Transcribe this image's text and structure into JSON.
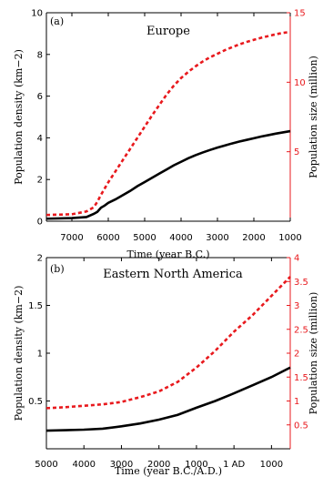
{
  "chart_data": [
    {
      "type": "line",
      "panel_label": "(a)",
      "title": "Europe",
      "xlabel": "Time (year B.C.)",
      "ylabel_left": "Population density (km−2)",
      "ylabel_right": "Population size (million)",
      "xlim": [
        7700,
        1000
      ],
      "xticks": [
        7000,
        6000,
        5000,
        4000,
        3000,
        2000,
        1000
      ],
      "xtick_labels": [
        "7000",
        "6000",
        "5000",
        "4000",
        "3000",
        "2000",
        "1000"
      ],
      "ylim_left": [
        0,
        10
      ],
      "yticks_left": [
        0,
        2,
        4,
        6,
        8,
        10
      ],
      "ylim_right": [
        0,
        15
      ],
      "yticks_right": [
        5,
        10,
        15
      ],
      "grid": false,
      "colors": {
        "density": "#000000",
        "size": "#e8191d",
        "right_axis": "#e8191d"
      },
      "series": [
        {
          "axis": "left",
          "style": "solid",
          "x": [
            7700,
            7000,
            6600,
            6400,
            6300,
            6200,
            6100,
            6000,
            5800,
            5600,
            5400,
            5200,
            5000,
            4800,
            4600,
            4400,
            4200,
            4000,
            3800,
            3600,
            3400,
            3200,
            3000,
            2800,
            2600,
            2400,
            2200,
            2000,
            1800,
            1600,
            1400,
            1200,
            1000
          ],
          "y": [
            0.12,
            0.15,
            0.2,
            0.35,
            0.45,
            0.65,
            0.75,
            0.88,
            1.05,
            1.25,
            1.45,
            1.68,
            1.88,
            2.08,
            2.28,
            2.48,
            2.68,
            2.85,
            3.02,
            3.17,
            3.3,
            3.42,
            3.53,
            3.63,
            3.73,
            3.82,
            3.9,
            3.98,
            4.06,
            4.13,
            4.2,
            4.26,
            4.32
          ]
        },
        {
          "axis": "right",
          "style": "dashed",
          "x": [
            7700,
            7000,
            6600,
            6400,
            6300,
            6200,
            6000,
            5800,
            5600,
            5400,
            5200,
            5000,
            4800,
            4600,
            4400,
            4200,
            4000,
            3800,
            3600,
            3400,
            3200,
            3000,
            2800,
            2600,
            2400,
            2200,
            2000,
            1800,
            1600,
            1400,
            1200,
            1000
          ],
          "y": [
            0.45,
            0.5,
            0.7,
            1.0,
            1.4,
            1.9,
            2.8,
            3.6,
            4.4,
            5.2,
            6.0,
            6.8,
            7.6,
            8.35,
            9.1,
            9.75,
            10.3,
            10.75,
            11.15,
            11.5,
            11.8,
            12.05,
            12.3,
            12.52,
            12.72,
            12.9,
            13.05,
            13.2,
            13.32,
            13.45,
            13.55,
            13.62
          ]
        }
      ]
    },
    {
      "type": "line",
      "panel_label": "(b)",
      "title": "Eastern North America",
      "xlabel": "Time (year B.C./A.D.)",
      "ylabel_left": "Population density (km−2)",
      "ylabel_right": "Population size (million)",
      "xlim": [
        -5000,
        1500
      ],
      "xticks": [
        -5000,
        -4000,
        -3000,
        -2000,
        -1000,
        0,
        1000
      ],
      "xtick_labels": [
        "5000",
        "4000",
        "3000",
        "2000",
        "1000",
        "1 AD",
        "1000"
      ],
      "ylim_left": [
        0,
        2
      ],
      "yticks_left": [
        0.5,
        1,
        1.5,
        2
      ],
      "ylim_right": [
        0,
        4
      ],
      "yticks_right": [
        0.5,
        1,
        1.5,
        2,
        2.5,
        3,
        3.5,
        4
      ],
      "grid": false,
      "colors": {
        "density": "#000000",
        "size": "#e8191d",
        "right_axis": "#e8191d"
      },
      "series": [
        {
          "axis": "left",
          "style": "solid",
          "x": [
            -5000,
            -4500,
            -4000,
            -3500,
            -3000,
            -2500,
            -2000,
            -1500,
            -1000,
            -500,
            0,
            500,
            1000,
            1500
          ],
          "y": [
            0.19,
            0.195,
            0.2,
            0.21,
            0.235,
            0.265,
            0.305,
            0.355,
            0.43,
            0.5,
            0.58,
            0.665,
            0.75,
            0.85
          ]
        },
        {
          "axis": "right",
          "style": "dashed",
          "x": [
            -5000,
            -4500,
            -4000,
            -3500,
            -3000,
            -2500,
            -2000,
            -1500,
            -1000,
            -500,
            0,
            500,
            1000,
            1500
          ],
          "y": [
            0.85,
            0.87,
            0.9,
            0.93,
            0.98,
            1.08,
            1.2,
            1.4,
            1.7,
            2.05,
            2.45,
            2.8,
            3.2,
            3.6
          ]
        }
      ]
    }
  ]
}
